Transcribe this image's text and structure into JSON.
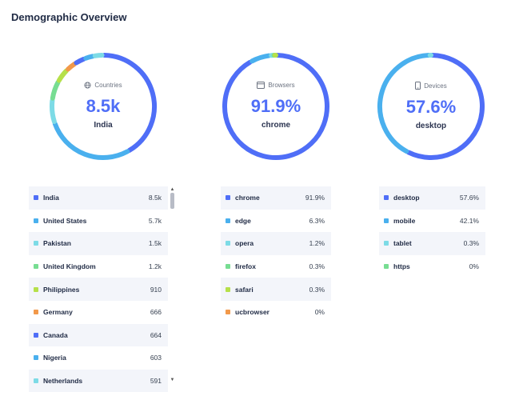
{
  "page_title": "Demographic Overview",
  "colors": {
    "blue": "#4f6ef7",
    "sky": "#4ab0ee",
    "cyan": "#7ddbe6",
    "green": "#77dd92",
    "lime": "#b6e04a",
    "orange": "#f2994a",
    "track": "#e5e7eb"
  },
  "countries": {
    "label": "Countries",
    "icon": "globe-icon",
    "value": "8.5k",
    "sub": "India",
    "items": [
      {
        "name": "India",
        "value": "8.5k",
        "color": "#4f6ef7"
      },
      {
        "name": "United States",
        "value": "5.7k",
        "color": "#4ab0ee"
      },
      {
        "name": "Pakistan",
        "value": "1.5k",
        "color": "#7ddbe6"
      },
      {
        "name": "United Kingdom",
        "value": "1.2k",
        "color": "#77dd92"
      },
      {
        "name": "Philippines",
        "value": "910",
        "color": "#b6e04a"
      },
      {
        "name": "Germany",
        "value": "666",
        "color": "#f2994a"
      },
      {
        "name": "Canada",
        "value": "664",
        "color": "#4f6ef7"
      },
      {
        "name": "Nigeria",
        "value": "603",
        "color": "#4ab0ee"
      },
      {
        "name": "Netherlands",
        "value": "591",
        "color": "#7ddbe6"
      }
    ]
  },
  "browsers": {
    "label": "Browsers",
    "icon": "window-icon",
    "value": "91.9%",
    "sub": "chrome",
    "items": [
      {
        "name": "chrome",
        "value": "91.9%",
        "color": "#4f6ef7"
      },
      {
        "name": "edge",
        "value": "6.3%",
        "color": "#4ab0ee"
      },
      {
        "name": "opera",
        "value": "1.2%",
        "color": "#7ddbe6"
      },
      {
        "name": "firefox",
        "value": "0.3%",
        "color": "#77dd92"
      },
      {
        "name": "safari",
        "value": "0.3%",
        "color": "#b6e04a"
      },
      {
        "name": "ucbrowser",
        "value": "0%",
        "color": "#f2994a"
      }
    ]
  },
  "devices": {
    "label": "Devices",
    "icon": "phone-icon",
    "value": "57.6%",
    "sub": "desktop",
    "items": [
      {
        "name": "desktop",
        "value": "57.6%",
        "color": "#4f6ef7"
      },
      {
        "name": "mobile",
        "value": "42.1%",
        "color": "#4ab0ee"
      },
      {
        "name": "tablet",
        "value": "0.3%",
        "color": "#7ddbe6"
      },
      {
        "name": "https",
        "value": "0%",
        "color": "#77dd92"
      }
    ]
  },
  "chart_data": [
    {
      "type": "pie",
      "title": "Countries",
      "categories": [
        "India",
        "United States",
        "Pakistan",
        "United Kingdom",
        "Philippines",
        "Germany",
        "Canada",
        "Nigeria",
        "Netherlands"
      ],
      "values": [
        8500,
        5700,
        1500,
        1200,
        910,
        666,
        664,
        603,
        591
      ]
    },
    {
      "type": "pie",
      "title": "Browsers",
      "categories": [
        "chrome",
        "edge",
        "opera",
        "firefox",
        "safari",
        "ucbrowser"
      ],
      "values": [
        91.9,
        6.3,
        1.2,
        0.3,
        0.3,
        0
      ]
    },
    {
      "type": "pie",
      "title": "Devices",
      "categories": [
        "desktop",
        "mobile",
        "tablet",
        "https"
      ],
      "values": [
        57.6,
        42.1,
        0.3,
        0
      ]
    }
  ]
}
